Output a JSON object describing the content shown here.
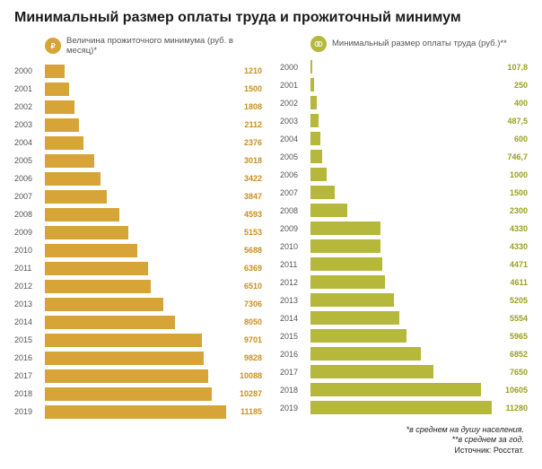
{
  "title": "Минимальный размер оплаты труда и прожиточный минимум",
  "left_chart": {
    "type": "bar",
    "label": "Величина прожиточного минимума (руб. в месяц)*",
    "icon_bg": "#d6a437",
    "icon_fg": "#ffffff",
    "bar_color": "#d6a437",
    "value_color": "#c98f20",
    "max": 11185,
    "rows": [
      {
        "year": "2000",
        "value": 1210
      },
      {
        "year": "2001",
        "value": 1500
      },
      {
        "year": "2002",
        "value": 1808
      },
      {
        "year": "2003",
        "value": 2112
      },
      {
        "year": "2004",
        "value": 2376
      },
      {
        "year": "2005",
        "value": 3018
      },
      {
        "year": "2006",
        "value": 3422
      },
      {
        "year": "2007",
        "value": 3847
      },
      {
        "year": "2008",
        "value": 4593
      },
      {
        "year": "2009",
        "value": 5153
      },
      {
        "year": "2010",
        "value": 5688
      },
      {
        "year": "2011",
        "value": 6369
      },
      {
        "year": "2012",
        "value": 6510
      },
      {
        "year": "2013",
        "value": 7306
      },
      {
        "year": "2014",
        "value": 8050
      },
      {
        "year": "2015",
        "value": 9701
      },
      {
        "year": "2016",
        "value": 9828
      },
      {
        "year": "2017",
        "value": 10088
      },
      {
        "year": "2018",
        "value": 10287
      },
      {
        "year": "2019",
        "value": 11185
      }
    ]
  },
  "right_chart": {
    "type": "bar",
    "label": "Минимальный размер оплаты труда (руб.)**",
    "icon_bg": "#b5b83a",
    "icon_fg": "#ffffff",
    "bar_color": "#b5b83a",
    "value_color": "#9aa020",
    "max": 11280,
    "rows": [
      {
        "year": "2000",
        "value": 107.8,
        "display": "107,8"
      },
      {
        "year": "2001",
        "value": 250
      },
      {
        "year": "2002",
        "value": 400
      },
      {
        "year": "2003",
        "value": 487.5,
        "display": "487,5"
      },
      {
        "year": "2004",
        "value": 600
      },
      {
        "year": "2005",
        "value": 746.7,
        "display": "746,7"
      },
      {
        "year": "2006",
        "value": 1000
      },
      {
        "year": "2007",
        "value": 1500
      },
      {
        "year": "2008",
        "value": 2300
      },
      {
        "year": "2009",
        "value": 4330
      },
      {
        "year": "2010",
        "value": 4330
      },
      {
        "year": "2011",
        "value": 4471
      },
      {
        "year": "2012",
        "value": 4611
      },
      {
        "year": "2013",
        "value": 5205
      },
      {
        "year": "2014",
        "value": 5554
      },
      {
        "year": "2015",
        "value": 5965
      },
      {
        "year": "2016",
        "value": 6852
      },
      {
        "year": "2017",
        "value": 7650
      },
      {
        "year": "2018",
        "value": 10605
      },
      {
        "year": "2019",
        "value": 11280
      }
    ]
  },
  "footnotes": {
    "line1": "*в среднем на душу населения.",
    "line2": "**в среднем за год.",
    "source": "Источник: Росстат."
  },
  "background_color": "#ffffff",
  "year_color": "#555555"
}
